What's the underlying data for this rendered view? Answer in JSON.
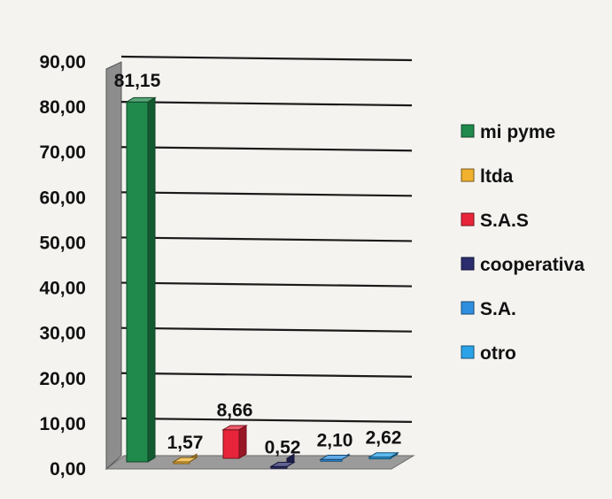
{
  "chart_data": {
    "type": "bar",
    "title": "",
    "xlabel": "",
    "ylabel": "",
    "categories": [
      "mi pyme",
      "ltda",
      "S.A.S",
      "cooperativa",
      "S.A.",
      "otro"
    ],
    "values": [
      81.15,
      1.57,
      8.66,
      0.52,
      2.1,
      2.62
    ],
    "value_labels": [
      "81,15",
      "1,57",
      "8,66",
      "0,52",
      "2,10",
      "2,62"
    ],
    "ylim": [
      0,
      90
    ],
    "yticks": [
      "0,00",
      "10,00",
      "20,00",
      "30,00",
      "40,00",
      "50,00",
      "60,00",
      "70,00",
      "80,00",
      "90,00"
    ],
    "grid": true,
    "three_d": true,
    "legend_position": "right",
    "colors": [
      "#1f8a4c",
      "#f0b12f",
      "#e8243a",
      "#2b2d6e",
      "#2e8fe0",
      "#2aa2e8"
    ]
  }
}
